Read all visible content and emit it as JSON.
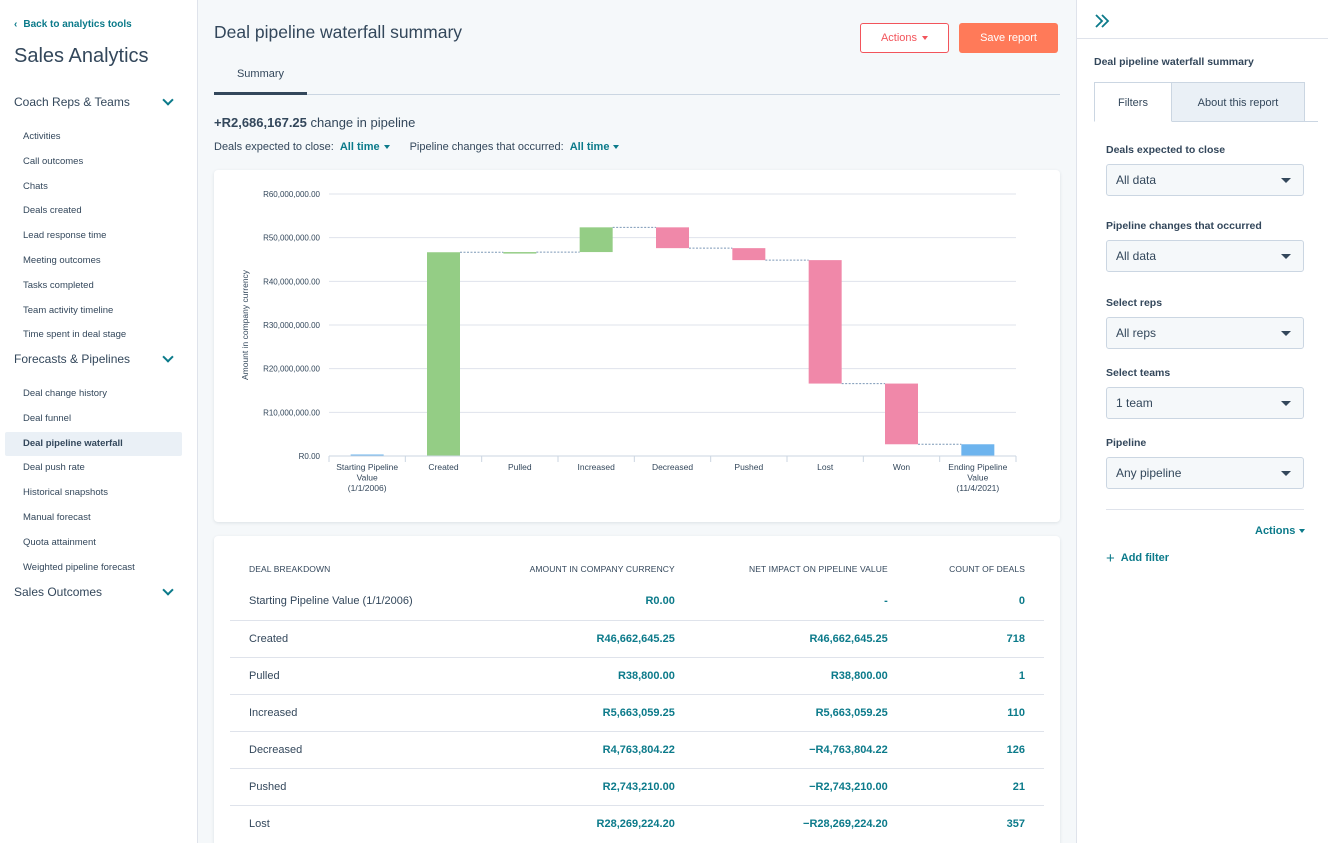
{
  "sidebar": {
    "back_link": "Back to analytics tools",
    "title": "Sales Analytics",
    "groups": [
      {
        "label": "Coach Reps & Teams",
        "items": [
          "Activities",
          "Call outcomes",
          "Chats",
          "Deals created",
          "Lead response time",
          "Meeting outcomes",
          "Tasks completed",
          "Team activity timeline",
          "Time spent in deal stage"
        ]
      },
      {
        "label": "Forecasts & Pipelines",
        "items": [
          "Deal change history",
          "Deal funnel",
          "Deal pipeline waterfall",
          "Deal push rate",
          "Historical snapshots",
          "Manual forecast",
          "Quota attainment",
          "Weighted pipeline forecast"
        ]
      },
      {
        "label": "Sales Outcomes",
        "items": []
      }
    ],
    "active_item": "Deal pipeline waterfall"
  },
  "main": {
    "title": "Deal pipeline waterfall summary",
    "actions_label": "Actions",
    "save_label": "Save report",
    "tab": "Summary",
    "change_amount": "+R2,686,167.25",
    "change_text": "change in pipeline",
    "filter1_label": "Deals expected to close:",
    "filter1_value": "All time",
    "filter2_label": "Pipeline changes that occurred:",
    "filter2_value": "All time"
  },
  "chart_data": {
    "type": "bar",
    "subtype": "waterfall",
    "ylabel": "Amount in company currency",
    "ylim": [
      0,
      60000000
    ],
    "yticks": [
      "R0.00",
      "R10,000,000.00",
      "R20,000,000.00",
      "R30,000,000.00",
      "R40,000,000.00",
      "R50,000,000.00",
      "R60,000,000.00"
    ],
    "categories": [
      [
        "Starting Pipeline",
        "Value",
        "(1/1/2006)"
      ],
      [
        "Created"
      ],
      [
        "Pulled"
      ],
      [
        "Increased"
      ],
      [
        "Decreased"
      ],
      [
        "Pushed"
      ],
      [
        "Lost"
      ],
      [
        "Won"
      ],
      [
        "Ending Pipeline",
        "Value",
        "(11/4/2021)"
      ]
    ],
    "bars": [
      {
        "start": 0,
        "end": 0,
        "kind": "total"
      },
      {
        "start": 0,
        "end": 46662645.25,
        "kind": "increase"
      },
      {
        "start": 46662645.25,
        "end": 46701445.25,
        "kind": "increase"
      },
      {
        "start": 46701445.25,
        "end": 52364504.5,
        "kind": "increase"
      },
      {
        "start": 52364504.5,
        "end": 47600700.28,
        "kind": "decrease"
      },
      {
        "start": 47600700.28,
        "end": 44857490.28,
        "kind": "decrease"
      },
      {
        "start": 44857490.28,
        "end": 16588266.08,
        "kind": "decrease"
      },
      {
        "start": 16588266.08,
        "end": 2686167.25,
        "kind": "decrease"
      },
      {
        "start": 0,
        "end": 2686167.25,
        "kind": "total"
      }
    ],
    "colors": {
      "increase": "#94cd85",
      "decrease": "#f088a9",
      "total": "#6db4ee"
    }
  },
  "table": {
    "headers": [
      "DEAL BREAKDOWN",
      "AMOUNT IN COMPANY CURRENCY",
      "NET IMPACT ON PIPELINE VALUE",
      "COUNT OF DEALS"
    ],
    "rows": [
      [
        "Starting Pipeline Value (1/1/2006)",
        "R0.00",
        "-",
        "0"
      ],
      [
        "Created",
        "R46,662,645.25",
        "R46,662,645.25",
        "718"
      ],
      [
        "Pulled",
        "R38,800.00",
        "R38,800.00",
        "1"
      ],
      [
        "Increased",
        "R5,663,059.25",
        "R5,663,059.25",
        "110"
      ],
      [
        "Decreased",
        "R4,763,804.22",
        "−R4,763,804.22",
        "126"
      ],
      [
        "Pushed",
        "R2,743,210.00",
        "−R2,743,210.00",
        "21"
      ],
      [
        "Lost",
        "R28,269,224.20",
        "−R28,269,224.20",
        "357"
      ]
    ]
  },
  "right_panel": {
    "title": "Deal pipeline waterfall summary",
    "tab_filters": "Filters",
    "tab_about": "About this report",
    "filters": [
      {
        "label": "Deals expected to close",
        "value": "All data"
      },
      {
        "label": "Pipeline changes that occurred",
        "value": "All data"
      },
      {
        "label": "Select reps",
        "value": "All reps"
      },
      {
        "label": "Select teams",
        "value": "1 team"
      },
      {
        "label": "Pipeline",
        "value": "Any pipeline"
      }
    ],
    "actions_label": "Actions",
    "add_filter_label": "Add filter"
  }
}
